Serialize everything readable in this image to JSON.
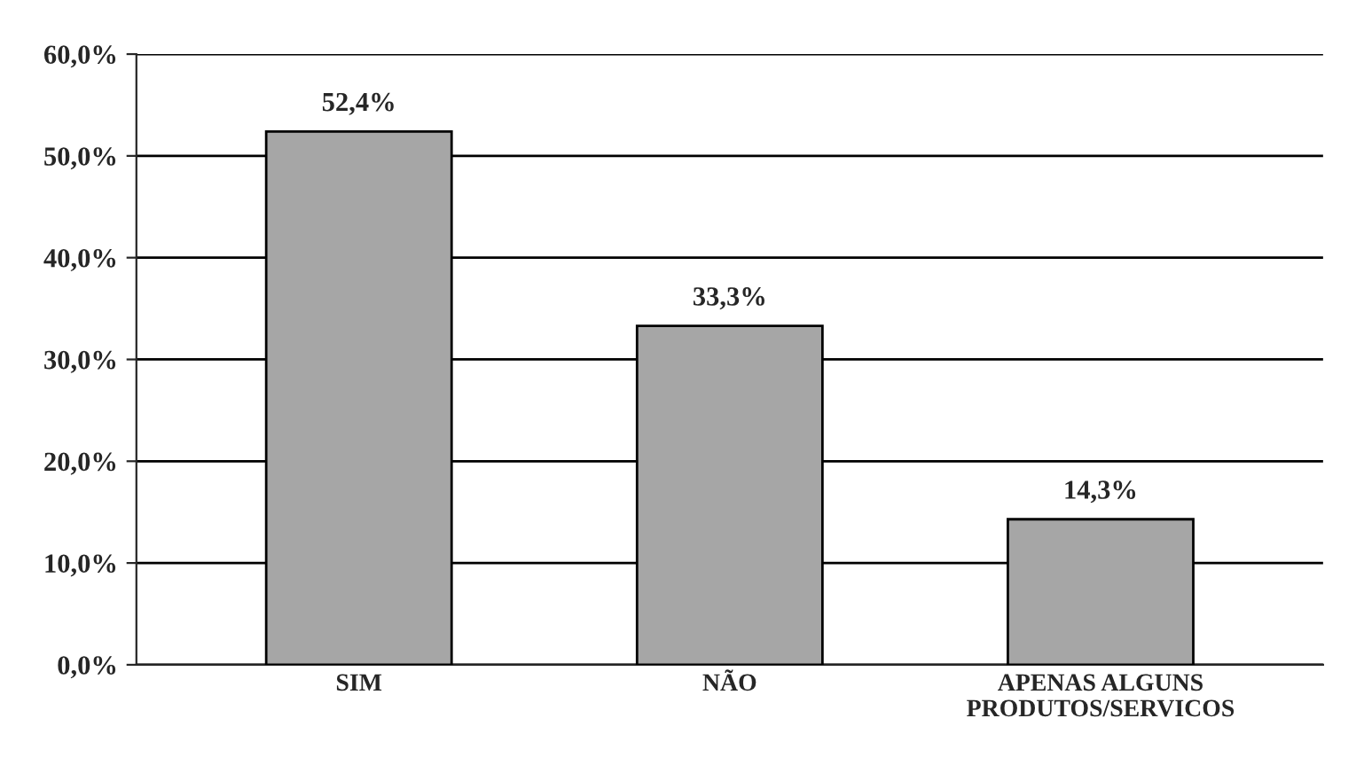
{
  "chart_data": {
    "type": "bar",
    "categories": [
      "SIM",
      "NÃO",
      "APENAS ALGUNS\nPRODUTOS/SERVICOS"
    ],
    "values": [
      52.4,
      33.3,
      14.3
    ],
    "value_labels": [
      "52,4%",
      "33,3%",
      "14,3%"
    ],
    "color": "#a6a6a6",
    "ylim": [
      0,
      60
    ],
    "yticks": [
      {
        "value": 0,
        "label": "0,0%"
      },
      {
        "value": 10,
        "label": "10,0%"
      },
      {
        "value": 20,
        "label": "20,0%"
      },
      {
        "value": 30,
        "label": "30,0%"
      },
      {
        "value": 40,
        "label": "40,0%"
      },
      {
        "value": 50,
        "label": "50,0%"
      },
      {
        "value": 60,
        "label": "60,0%"
      }
    ],
    "grid": "y"
  }
}
